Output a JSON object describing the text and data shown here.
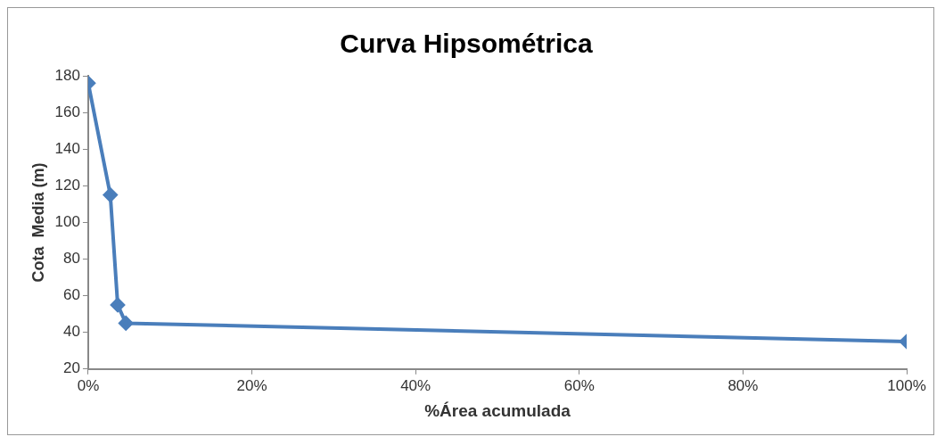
{
  "chart_data": {
    "type": "line",
    "title": "Curva Hipsométrica",
    "xlabel": "%Área acumulada",
    "ylabel": "Cota  Media (m)",
    "x": [
      0,
      2.7,
      3.6,
      4.6,
      100
    ],
    "series": [
      {
        "color": "#4a7ebb",
        "values": [
          176,
          115,
          55,
          45,
          35
        ]
      }
    ],
    "xlim": [
      0,
      100
    ],
    "xticks": [
      {
        "value": 0,
        "label": "0%"
      },
      {
        "value": 20,
        "label": "20%"
      },
      {
        "value": 40,
        "label": "40%"
      },
      {
        "value": 60,
        "label": "60%"
      },
      {
        "value": 80,
        "label": "80%"
      },
      {
        "value": 100,
        "label": "100%"
      }
    ],
    "ylim": [
      20,
      180
    ],
    "yticks": [
      20,
      40,
      60,
      80,
      100,
      120,
      140,
      160,
      180
    ],
    "grid": false,
    "legend": false,
    "marker": "diamond",
    "line_style": "solid"
  }
}
